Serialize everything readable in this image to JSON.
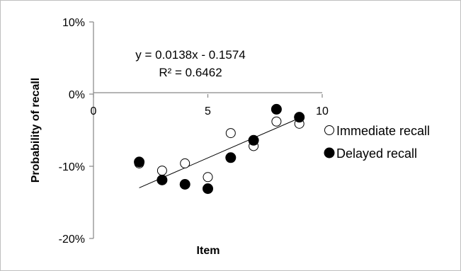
{
  "chart_data": {
    "type": "scatter",
    "xlabel": "Item",
    "ylabel": "Probability of recall",
    "xlim": [
      0,
      10
    ],
    "ylim": [
      -20,
      10
    ],
    "x_ticks": [
      {
        "value": 0,
        "label": "0"
      },
      {
        "value": 5,
        "label": "5"
      },
      {
        "value": 10,
        "label": "10"
      }
    ],
    "y_ticks": [
      {
        "value": 10,
        "label": "10%"
      },
      {
        "value": 0,
        "label": "0%"
      },
      {
        "value": -10,
        "label": "-10%"
      },
      {
        "value": -20,
        "label": "-20%"
      }
    ],
    "grid": false,
    "legend_position": "right",
    "series": [
      {
        "name": "Immediate recall",
        "marker": "open-circle",
        "color": "#000000",
        "fill": "#ffffff",
        "points": [
          {
            "x": 2,
            "y": -9.6
          },
          {
            "x": 3,
            "y": -10.6
          },
          {
            "x": 4,
            "y": -9.6
          },
          {
            "x": 5,
            "y": -11.5
          },
          {
            "x": 6,
            "y": -5.4
          },
          {
            "x": 7,
            "y": -7.2
          },
          {
            "x": 8,
            "y": -3.8
          },
          {
            "x": 9,
            "y": -4.1
          }
        ]
      },
      {
        "name": "Delayed recall",
        "marker": "filled-circle",
        "color": "#000000",
        "fill": "#000000",
        "points": [
          {
            "x": 2,
            "y": -9.4
          },
          {
            "x": 3,
            "y": -11.9
          },
          {
            "x": 4,
            "y": -12.5
          },
          {
            "x": 5,
            "y": -13.1
          },
          {
            "x": 6,
            "y": -8.8
          },
          {
            "x": 7,
            "y": -6.4
          },
          {
            "x": 8,
            "y": -2.1
          },
          {
            "x": 9,
            "y": -3.2
          }
        ]
      }
    ],
    "trendline": {
      "x_range": [
        2,
        9
      ],
      "slope": 0.0138,
      "intercept": -0.1574,
      "equation_label": "y = 0.0138x - 0.1574",
      "r_squared_label": "R² = 0.6462"
    }
  }
}
